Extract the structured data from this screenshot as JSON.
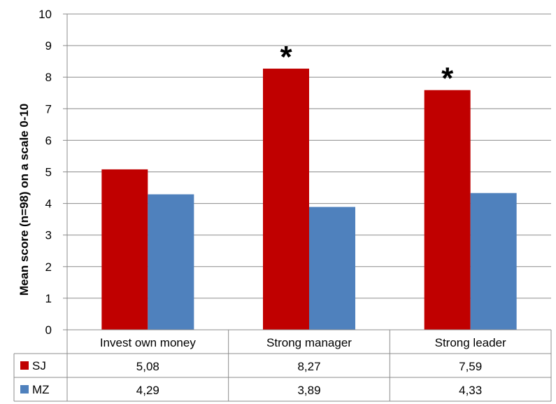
{
  "chart_data": {
    "type": "bar",
    "ylabel": "Mean score (n=98) on a scale 0-10",
    "ylim": [
      0,
      10
    ],
    "yticks": [
      "0",
      "1",
      "2",
      "3",
      "4",
      "5",
      "6",
      "7",
      "8",
      "9",
      "10"
    ],
    "grid": true,
    "categories": [
      "Invest own money",
      "Strong manager",
      "Strong leader"
    ],
    "series": [
      {
        "name": "SJ",
        "color": "#C00000",
        "values": [
          5.08,
          8.27,
          7.59
        ],
        "labels": [
          "5,08",
          "8,27",
          "7,59"
        ]
      },
      {
        "name": "MZ",
        "color": "#4F81BD",
        "values": [
          4.29,
          3.89,
          4.33
        ],
        "labels": [
          "4,29",
          "3,89",
          "4,33"
        ]
      }
    ],
    "annotations": [
      {
        "category_index": 1,
        "text": "*"
      },
      {
        "category_index": 2,
        "text": "*"
      }
    ],
    "legend": "data-table"
  }
}
